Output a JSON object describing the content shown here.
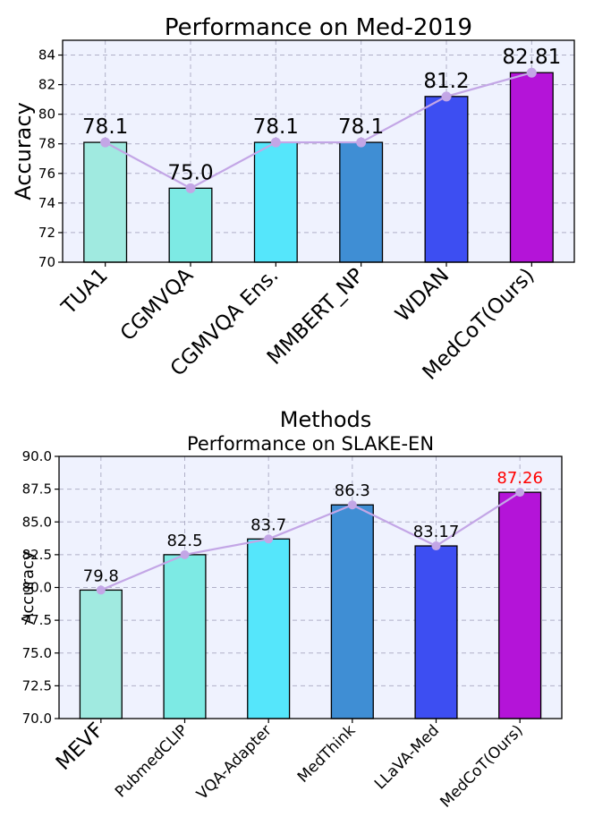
{
  "chart_data": [
    {
      "type": "bar",
      "title": "Performance on Med-2019",
      "xlabel": "Methods",
      "ylabel": "Accuracy",
      "ylim": [
        70,
        85
      ],
      "yticks": [
        "70",
        "72",
        "74",
        "76",
        "78",
        "80",
        "82",
        "84"
      ],
      "categories": [
        "TUA1",
        "CGMVQA",
        "CGMVQA Ens.",
        "MMBERT_NP",
        "WDAN",
        "MedCoT(Ours)"
      ],
      "values": [
        78.1,
        75.0,
        78.1,
        78.1,
        81.2,
        82.81
      ],
      "value_labels": [
        "78.1",
        "75.0",
        "78.1",
        "78.1",
        "81.2",
        "82.81"
      ],
      "colors": [
        "#a0eae0",
        "#7deae4",
        "#55e6fb",
        "#3f8ed4",
        "#3d4ef2",
        "#b414d8"
      ],
      "line_color": "#c3a6e6"
    },
    {
      "type": "bar",
      "title": "Performance on SLAKE-EN",
      "xlabel": "",
      "ylabel": "Accuracy",
      "ylim": [
        70,
        90
      ],
      "yticks": [
        "70.0",
        "72.5",
        "75.0",
        "77.5",
        "80.0",
        "82.5",
        "85.0",
        "87.5",
        "90.0"
      ],
      "categories": [
        "MEVF",
        "PubmedCLIP",
        "VQA-Adapter",
        "MedThink",
        "LLaVA-Med",
        "MedCoT(Ours)"
      ],
      "values": [
        79.8,
        82.5,
        83.7,
        86.3,
        83.17,
        87.26
      ],
      "value_labels": [
        "79.8",
        "82.5",
        "83.7",
        "86.3",
        "83.17",
        "87.26"
      ],
      "colors": [
        "#a0eae0",
        "#7deae4",
        "#55e6fb",
        "#3f8ed4",
        "#3d4ef2",
        "#b414d8"
      ],
      "line_color": "#c3a6e6",
      "highlight_label_color": "#ff0000"
    }
  ]
}
